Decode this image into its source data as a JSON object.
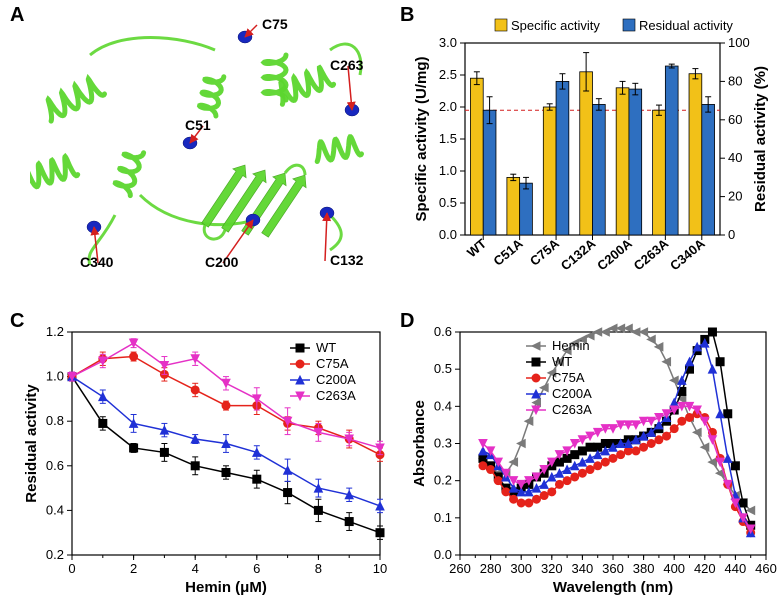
{
  "labels": {
    "A": "A",
    "B": "B",
    "C": "C",
    "D": "D"
  },
  "panelA": {
    "residues": [
      "C75",
      "C263",
      "C51",
      "C340",
      "C200",
      "C132"
    ],
    "ribbon_color": "#5cd62e",
    "residue_color": "#1828bf",
    "arrow_color": "#d41f1f"
  },
  "panelB": {
    "categories": [
      "WT",
      "C51A",
      "C75A",
      "C132A",
      "C200A",
      "C263A",
      "C340A"
    ],
    "specific_activity": [
      2.45,
      0.9,
      2.0,
      2.55,
      2.3,
      1.95,
      2.52
    ],
    "specific_err": [
      0.1,
      0.05,
      0.05,
      0.3,
      0.1,
      0.08,
      0.08
    ],
    "residual_activity": [
      65,
      27,
      80,
      68,
      76,
      88,
      68
    ],
    "residual_err": [
      7,
      3,
      4,
      3,
      3,
      1,
      4
    ],
    "y1_label": "Specific activity (U/mg)",
    "y2_label": "Residual activity (%)",
    "y1_max": 3.0,
    "y1_step": 0.5,
    "y2_max": 100,
    "y2_step": 20,
    "legend": [
      "Specific activity",
      "Residual activity"
    ],
    "color_y1": "#f2c118",
    "color_y2": "#2e6fc0",
    "refline_y2": 65,
    "refline_color": "#d41f1f",
    "tick_color": "#000",
    "bar_border": "#000",
    "bar_width": 0.35
  },
  "panelC": {
    "x_label": "Hemin (μM)",
    "y_label": "Residual activity",
    "x": [
      0,
      1,
      2,
      3,
      4,
      5,
      6,
      7,
      8,
      9,
      10
    ],
    "series": [
      {
        "name": "WT",
        "marker": "square",
        "color": "#000000",
        "y": [
          1.0,
          0.79,
          0.68,
          0.66,
          0.6,
          0.57,
          0.54,
          0.48,
          0.4,
          0.35,
          0.3
        ],
        "err": [
          0.02,
          0.03,
          0.02,
          0.04,
          0.04,
          0.03,
          0.04,
          0.05,
          0.05,
          0.04,
          0.03
        ]
      },
      {
        "name": "C75A",
        "marker": "circle",
        "color": "#e5231b",
        "y": [
          1.0,
          1.08,
          1.09,
          1.01,
          0.94,
          0.87,
          0.87,
          0.79,
          0.77,
          0.72,
          0.65
        ],
        "err": [
          0.02,
          0.03,
          0.02,
          0.03,
          0.03,
          0.02,
          0.04,
          0.03,
          0.03,
          0.04,
          0.03
        ]
      },
      {
        "name": "C200A",
        "marker": "triangle",
        "color": "#2031d6",
        "y": [
          1.0,
          0.91,
          0.79,
          0.76,
          0.72,
          0.7,
          0.66,
          0.58,
          0.5,
          0.47,
          0.42
        ],
        "err": [
          0.02,
          0.03,
          0.04,
          0.03,
          0.02,
          0.04,
          0.03,
          0.05,
          0.04,
          0.03,
          0.03
        ]
      },
      {
        "name": "C263A",
        "marker": "invtriangle",
        "color": "#e531c6",
        "y": [
          1.0,
          1.07,
          1.15,
          1.05,
          1.08,
          0.97,
          0.9,
          0.8,
          0.75,
          0.72,
          0.68
        ],
        "err": [
          0.02,
          0.03,
          0.02,
          0.04,
          0.03,
          0.03,
          0.05,
          0.06,
          0.04,
          0.03,
          0.03
        ]
      }
    ],
    "xlim": [
      0,
      10
    ],
    "xstep": 2,
    "ylim": [
      0.2,
      1.2
    ],
    "ystep": 0.2,
    "tick_color": "#000"
  },
  "panelD": {
    "x_label": "Wavelength (nm)",
    "y_label": "Absorbance",
    "x": [
      275,
      280,
      285,
      290,
      295,
      300,
      305,
      310,
      315,
      320,
      325,
      330,
      335,
      340,
      345,
      350,
      355,
      360,
      365,
      370,
      375,
      380,
      385,
      390,
      395,
      400,
      405,
      410,
      415,
      420,
      425,
      430,
      435,
      440,
      445,
      450
    ],
    "series": [
      {
        "name": "Hemin",
        "marker": "ltriangle",
        "color": "#7a7a7a",
        "y": [
          0.26,
          0.24,
          0.22,
          0.22,
          0.25,
          0.3,
          0.36,
          0.41,
          0.45,
          0.49,
          0.52,
          0.55,
          0.57,
          0.58,
          0.59,
          0.6,
          0.6,
          0.61,
          0.61,
          0.61,
          0.6,
          0.6,
          0.58,
          0.56,
          0.52,
          0.47,
          0.42,
          0.37,
          0.33,
          0.29,
          0.25,
          0.22,
          0.19,
          0.16,
          0.14,
          0.12
        ]
      },
      {
        "name": "WT",
        "marker": "square",
        "color": "#000000",
        "y": [
          0.26,
          0.24,
          0.21,
          0.18,
          0.17,
          0.18,
          0.19,
          0.21,
          0.22,
          0.24,
          0.25,
          0.26,
          0.27,
          0.28,
          0.29,
          0.29,
          0.3,
          0.3,
          0.3,
          0.31,
          0.31,
          0.32,
          0.33,
          0.34,
          0.36,
          0.39,
          0.44,
          0.5,
          0.55,
          0.58,
          0.6,
          0.52,
          0.38,
          0.24,
          0.14,
          0.08
        ]
      },
      {
        "name": "C75A",
        "marker": "circle",
        "color": "#e5231b",
        "y": [
          0.24,
          0.23,
          0.2,
          0.17,
          0.15,
          0.14,
          0.14,
          0.15,
          0.16,
          0.17,
          0.19,
          0.2,
          0.21,
          0.22,
          0.23,
          0.24,
          0.25,
          0.26,
          0.27,
          0.28,
          0.28,
          0.29,
          0.3,
          0.31,
          0.32,
          0.34,
          0.36,
          0.37,
          0.38,
          0.37,
          0.33,
          0.26,
          0.19,
          0.13,
          0.09,
          0.06
        ]
      },
      {
        "name": "C200A",
        "marker": "triangle",
        "color": "#2031d6",
        "y": [
          0.28,
          0.27,
          0.24,
          0.21,
          0.18,
          0.17,
          0.17,
          0.18,
          0.19,
          0.21,
          0.22,
          0.23,
          0.24,
          0.25,
          0.26,
          0.27,
          0.28,
          0.29,
          0.3,
          0.3,
          0.31,
          0.32,
          0.33,
          0.35,
          0.37,
          0.41,
          0.47,
          0.52,
          0.56,
          0.57,
          0.5,
          0.38,
          0.26,
          0.16,
          0.1,
          0.06
        ]
      },
      {
        "name": "C263A",
        "marker": "invtriangle",
        "color": "#e531c6",
        "y": [
          0.3,
          0.28,
          0.25,
          0.22,
          0.2,
          0.19,
          0.2,
          0.21,
          0.23,
          0.25,
          0.27,
          0.28,
          0.3,
          0.31,
          0.32,
          0.33,
          0.34,
          0.34,
          0.35,
          0.35,
          0.35,
          0.36,
          0.36,
          0.37,
          0.38,
          0.39,
          0.4,
          0.4,
          0.39,
          0.36,
          0.31,
          0.25,
          0.19,
          0.14,
          0.1,
          0.07
        ]
      }
    ],
    "xlim": [
      260,
      460
    ],
    "xstep": 20,
    "ylim": [
      0.0,
      0.6
    ],
    "ystep": 0.1,
    "tick_color": "#000"
  }
}
